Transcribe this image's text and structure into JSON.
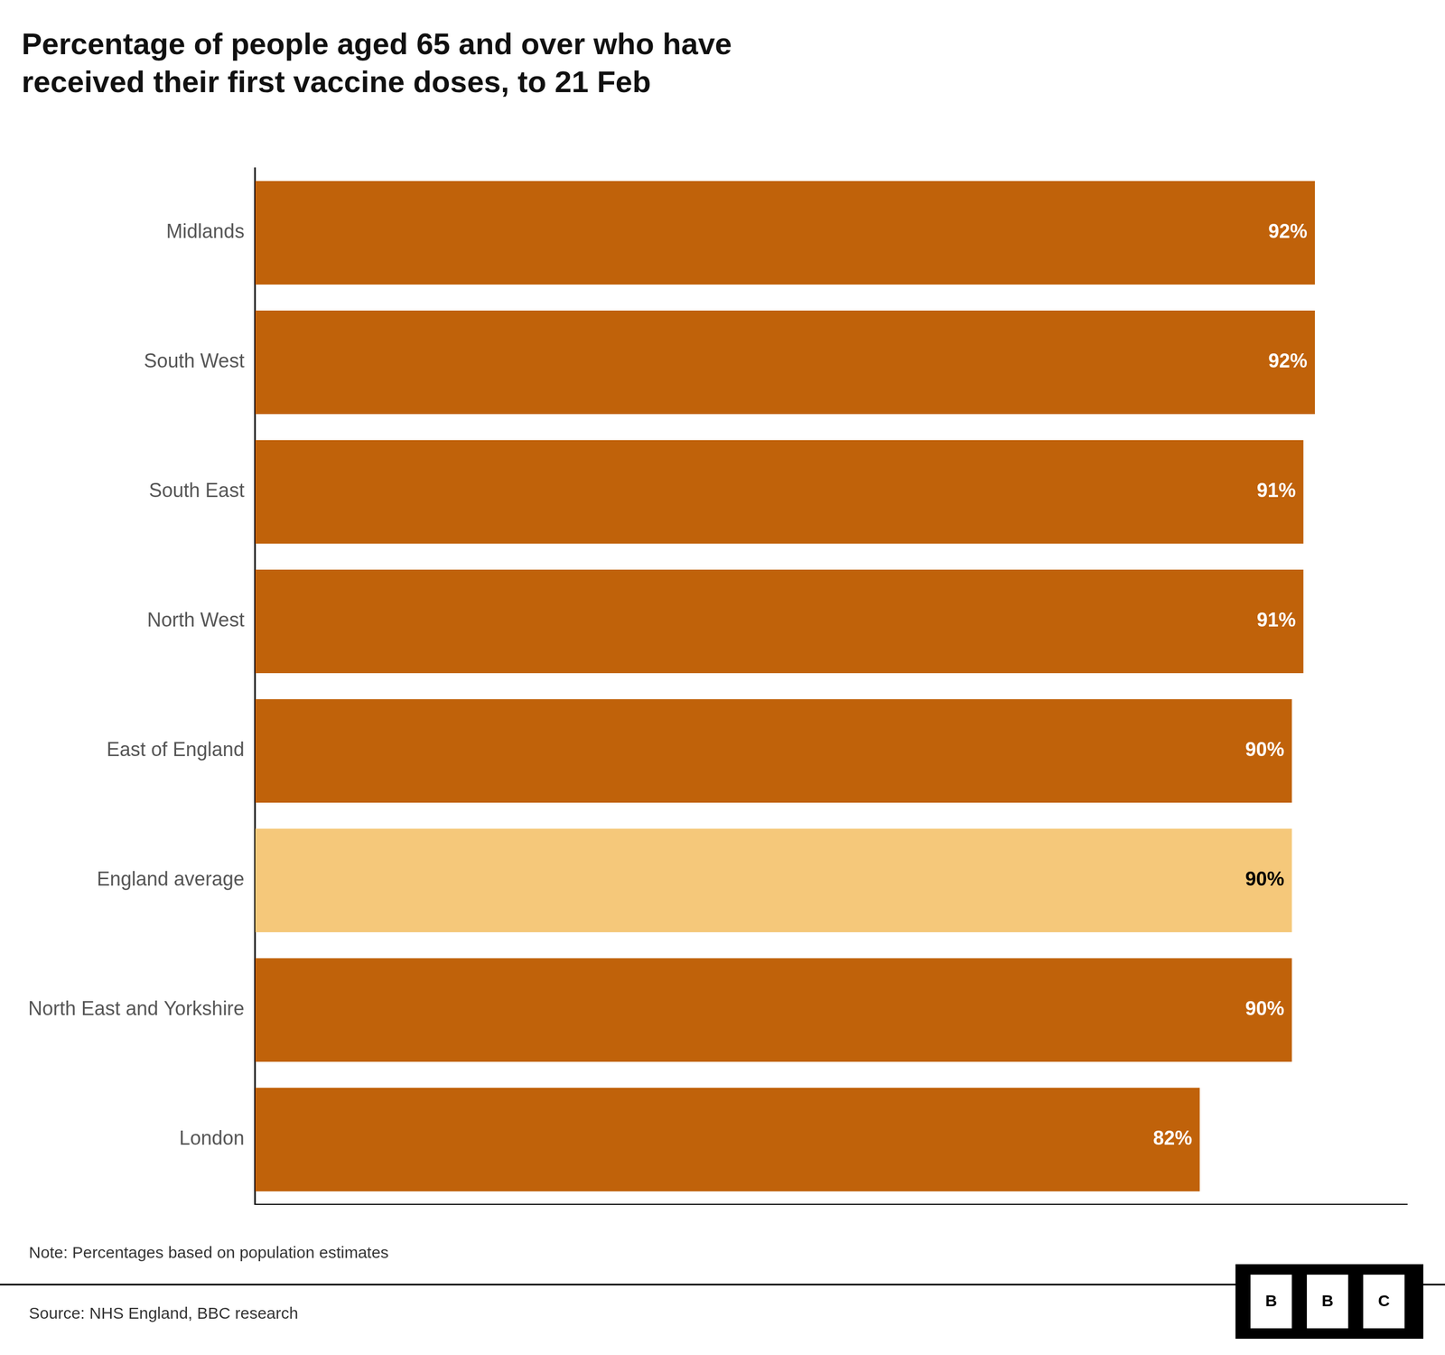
{
  "chart_data": {
    "type": "bar",
    "orientation": "horizontal",
    "title": "Percentage of people aged 65 and over who have\nreceived their first vaccine doses, to 21 Feb",
    "categories": [
      "Midlands",
      "South West",
      "South East",
      "North West",
      "East of England",
      "England average",
      "North East and Yorkshire",
      "London"
    ],
    "values": [
      92,
      92,
      91,
      91,
      90,
      90,
      90,
      82
    ],
    "value_labels": [
      "92%",
      "92%",
      "91%",
      "91%",
      "90%",
      "90%",
      "90%",
      "82%"
    ],
    "colors": [
      "#c0620a",
      "#c0620a",
      "#c0620a",
      "#c0620a",
      "#c0620a",
      "#f5c87a",
      "#c0620a",
      "#c0620a"
    ],
    "xlim": [
      0,
      100
    ],
    "data_labels": true,
    "tick_labels": "y",
    "grid": false,
    "annotations": [
      "Note: Percentages based on population estimates",
      "Source: NHS England, BBC research"
    ],
    "logo": [
      "B",
      "B",
      "C"
    ]
  }
}
